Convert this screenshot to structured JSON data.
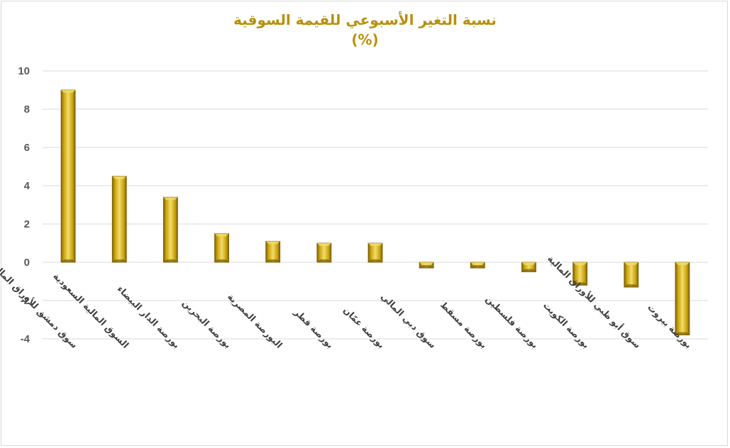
{
  "chart_data": {
    "type": "bar",
    "title": "نسبة التغير الأسبوعي للقيمة السوقية",
    "subtitle": "(%)",
    "categories": [
      "سوق دمشق للأوراق المالية",
      "السوق المالية السعودية",
      "بورصة الدار البيضاء",
      "بورصة البحرين",
      "البورصة المصرية",
      "بورصة قطر",
      "بورصة عمّان",
      "سوق دبي المالي",
      "بورصة مسقط",
      "بورصة فلسطين",
      "بورصة الكويت",
      "سوق أبو ظبي للأوراق المالية",
      "بورصة بيروت"
    ],
    "values": [
      9.0,
      4.5,
      3.4,
      1.5,
      1.1,
      1.0,
      1.0,
      -0.3,
      -0.3,
      -0.5,
      -1.2,
      -1.3,
      -3.8
    ],
    "ylim": [
      -4,
      10
    ],
    "yticks": [
      "10",
      "8",
      "6",
      "4",
      "2",
      "0",
      "-2",
      "-4"
    ],
    "grid": true,
    "xlabel": "",
    "ylabel": "",
    "colors": {
      "bar": "#c9a10a",
      "bar_dark": "#7a5e05",
      "bar_light": "#f1dc6a",
      "title": "#b8900a",
      "grid": "#d9d9d9"
    }
  }
}
